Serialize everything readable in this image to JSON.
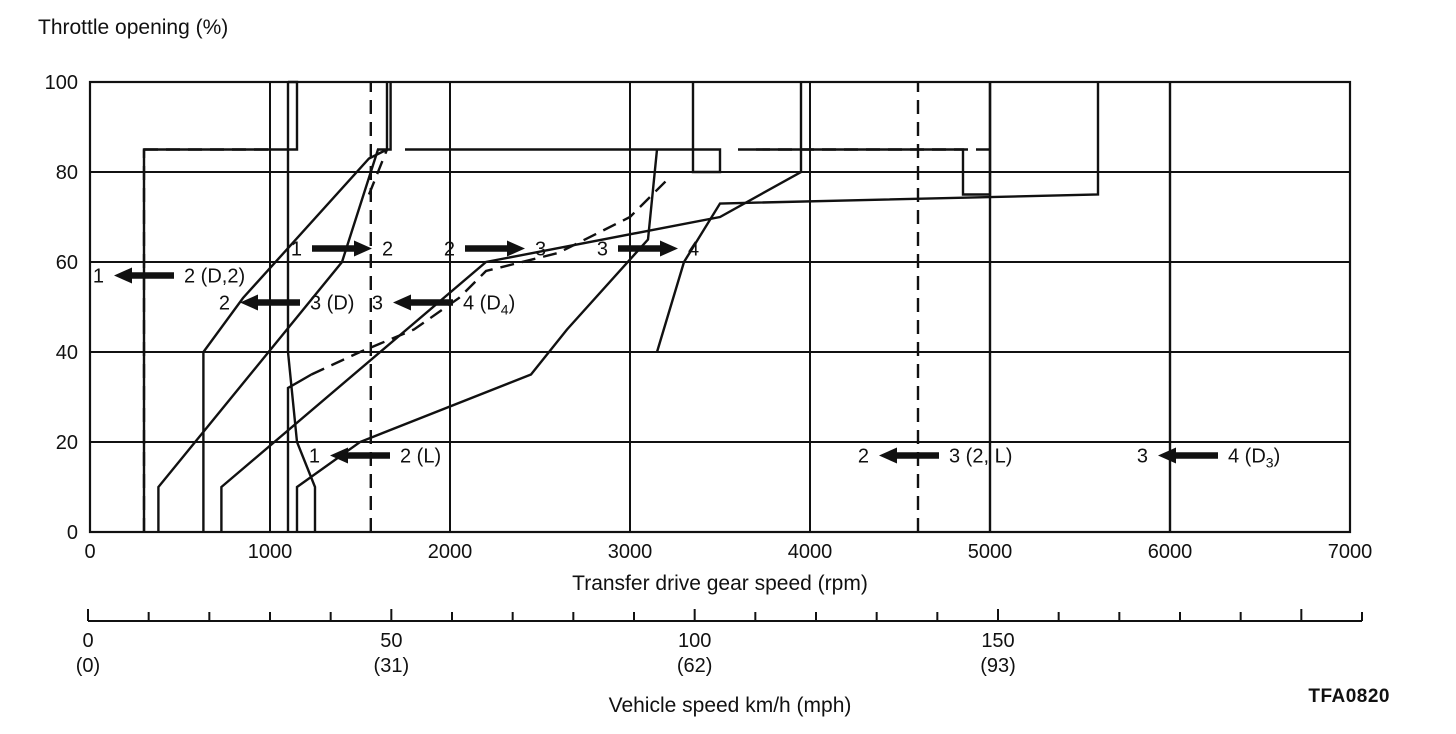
{
  "chart_data": {
    "type": "line",
    "title": "",
    "ylabel": "Throttle opening (%)",
    "xlabel": "Transfer drive gear speed (rpm)",
    "xlim": [
      0,
      7000
    ],
    "ylim": [
      0,
      100
    ],
    "x_ticks": [
      "0",
      "1000",
      "2000",
      "3000",
      "4000",
      "5000",
      "6000",
      "7000"
    ],
    "y_ticks": [
      "0",
      "20",
      "40",
      "60",
      "80",
      "100"
    ],
    "grid": true,
    "secondary_axis": {
      "label": "Vehicle speed km/h (mph)",
      "ticks": [
        {
          "kmh": "0",
          "mph": "(0)"
        },
        {
          "kmh": "50",
          "mph": "(31)"
        },
        {
          "kmh": "100",
          "mph": "(62)"
        },
        {
          "kmh": "150",
          "mph": "(93)"
        }
      ],
      "major_step_kmh": 50,
      "minor_step_kmh": 10,
      "range_kmh": [
        0,
        210
      ]
    },
    "figure_code": "TFA0820",
    "series": [
      {
        "style": "solid",
        "x": [
          1250,
          1250,
          1150,
          1100,
          1100
        ],
        "y": [
          0,
          10,
          20,
          40,
          100
        ]
      },
      {
        "style": "solid",
        "x": [
          300,
          300,
          1150,
          1150,
          1100
        ],
        "y": [
          0,
          85,
          85,
          100,
          100
        ]
      },
      {
        "style": "dashed",
        "x": [
          300,
          300
        ],
        "y": [
          0,
          85
        ]
      },
      {
        "style": "dashed",
        "x": [
          300,
          1000
        ],
        "y": [
          85,
          85
        ]
      },
      {
        "style": "solid",
        "x": [
          630,
          630,
          850,
          1550,
          1650,
          1650
        ],
        "y": [
          0,
          40,
          52,
          83,
          85,
          100
        ]
      },
      {
        "style": "solid",
        "x": [
          380,
          380,
          1400,
          1600,
          1670,
          1670
        ],
        "y": [
          0,
          10,
          60,
          85,
          85,
          100
        ]
      },
      {
        "style": "dashed",
        "x": [
          1550,
          1650
        ],
        "y": [
          75,
          85
        ]
      },
      {
        "style": "solid",
        "x": [
          1100,
          1100,
          1230
        ],
        "y": [
          0,
          32,
          35
        ]
      },
      {
        "style": "dashed",
        "x": [
          1230,
          1500,
          1800,
          2050,
          2200,
          2600,
          3000,
          3200
        ],
        "y": [
          35,
          40,
          45,
          52,
          58,
          62,
          70,
          78
        ]
      },
      {
        "style": "solid",
        "x": [
          730,
          730,
          2200,
          3500,
          3950,
          3950
        ],
        "y": [
          0,
          10,
          60,
          70,
          80,
          100
        ]
      },
      {
        "style": "solid",
        "x": [
          1150,
          1150,
          1500,
          2450,
          2650,
          3100,
          3150
        ],
        "y": [
          0,
          10,
          20,
          35,
          45,
          65,
          85
        ]
      },
      {
        "style": "solid",
        "x": [
          1750,
          3500,
          3500,
          3350,
          3350
        ],
        "y": [
          85,
          85,
          80,
          80,
          100
        ]
      },
      {
        "style": "dashed",
        "x": [
          3700,
          5000
        ],
        "y": [
          85,
          85
        ]
      },
      {
        "style": "solid",
        "x": [
          3600,
          4850,
          4850,
          5000,
          5000
        ],
        "y": [
          85,
          85,
          75,
          75,
          100
        ]
      },
      {
        "style": "solid",
        "x": [
          3150,
          3300,
          3500,
          5600,
          5600
        ],
        "y": [
          40,
          60,
          73,
          75,
          100
        ]
      },
      {
        "style": "dashed",
        "x": [
          1560,
          1560
        ],
        "y": [
          0,
          100
        ]
      },
      {
        "style": "dashed",
        "x": [
          4600,
          4600
        ],
        "y": [
          0,
          100
        ]
      },
      {
        "style": "solid",
        "x": [
          5000,
          5000
        ],
        "y": [
          0,
          100
        ]
      },
      {
        "style": "solid",
        "x": [
          6000,
          6000
        ],
        "y": [
          0,
          100
        ]
      }
    ],
    "annotations": [
      {
        "from": "1",
        "to": "2 (D,2)",
        "direction": "left",
        "x": 300,
        "y": 57
      },
      {
        "from": "1",
        "to": "2",
        "direction": "right",
        "x": 1400,
        "y": 63
      },
      {
        "from": "2",
        "to": "3 (D)",
        "direction": "left",
        "x": 1000,
        "y": 51
      },
      {
        "from": "3",
        "to": "4 (D4)",
        "direction": "left",
        "x": 1850,
        "y": 51
      },
      {
        "from": "2",
        "to": "3",
        "direction": "right",
        "x": 2250,
        "y": 63
      },
      {
        "from": "3",
        "to": "4",
        "direction": "right",
        "x": 3100,
        "y": 63
      },
      {
        "from": "1",
        "to": "2 (L)",
        "direction": "left",
        "x": 1500,
        "y": 17
      },
      {
        "from": "2",
        "to": "3 (2, L)",
        "direction": "left",
        "x": 4550,
        "y": 17
      },
      {
        "from": "3",
        "to": "4 (D3)",
        "direction": "left",
        "x": 6100,
        "y": 17
      }
    ]
  }
}
